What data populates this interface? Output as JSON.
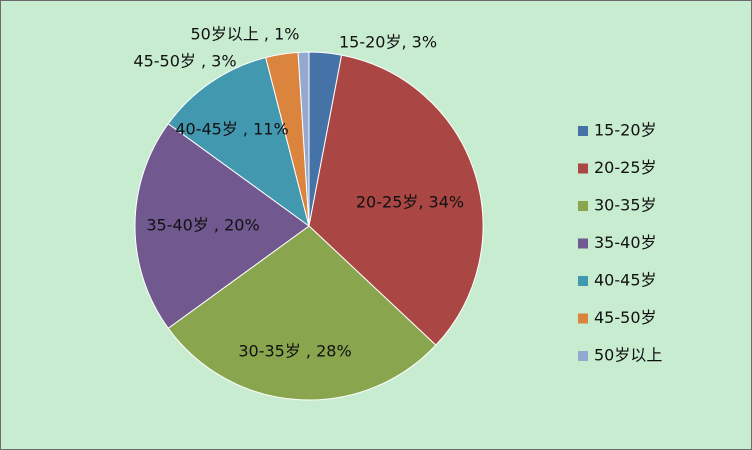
{
  "chart_data": {
    "type": "pie",
    "categories": [
      "15-20岁",
      "20-25岁",
      "30-35岁",
      "35-40岁",
      "40-45岁",
      "45-50岁",
      "50岁以上"
    ],
    "values": [
      3,
      34,
      28,
      20,
      11,
      3,
      1
    ],
    "value_labels": [
      "15-20岁, 3%",
      "20-25岁, 34%",
      "30-35岁 , 28%",
      "35-40岁 , 20%",
      "40-45岁 , 11%",
      "45-50岁 , 3%",
      "50岁以上 , 1%"
    ],
    "colors": [
      "#4572a7",
      "#aa4643",
      "#89a54e",
      "#71588f",
      "#4198af",
      "#db843d",
      "#93a9cf"
    ],
    "legend": "right"
  }
}
